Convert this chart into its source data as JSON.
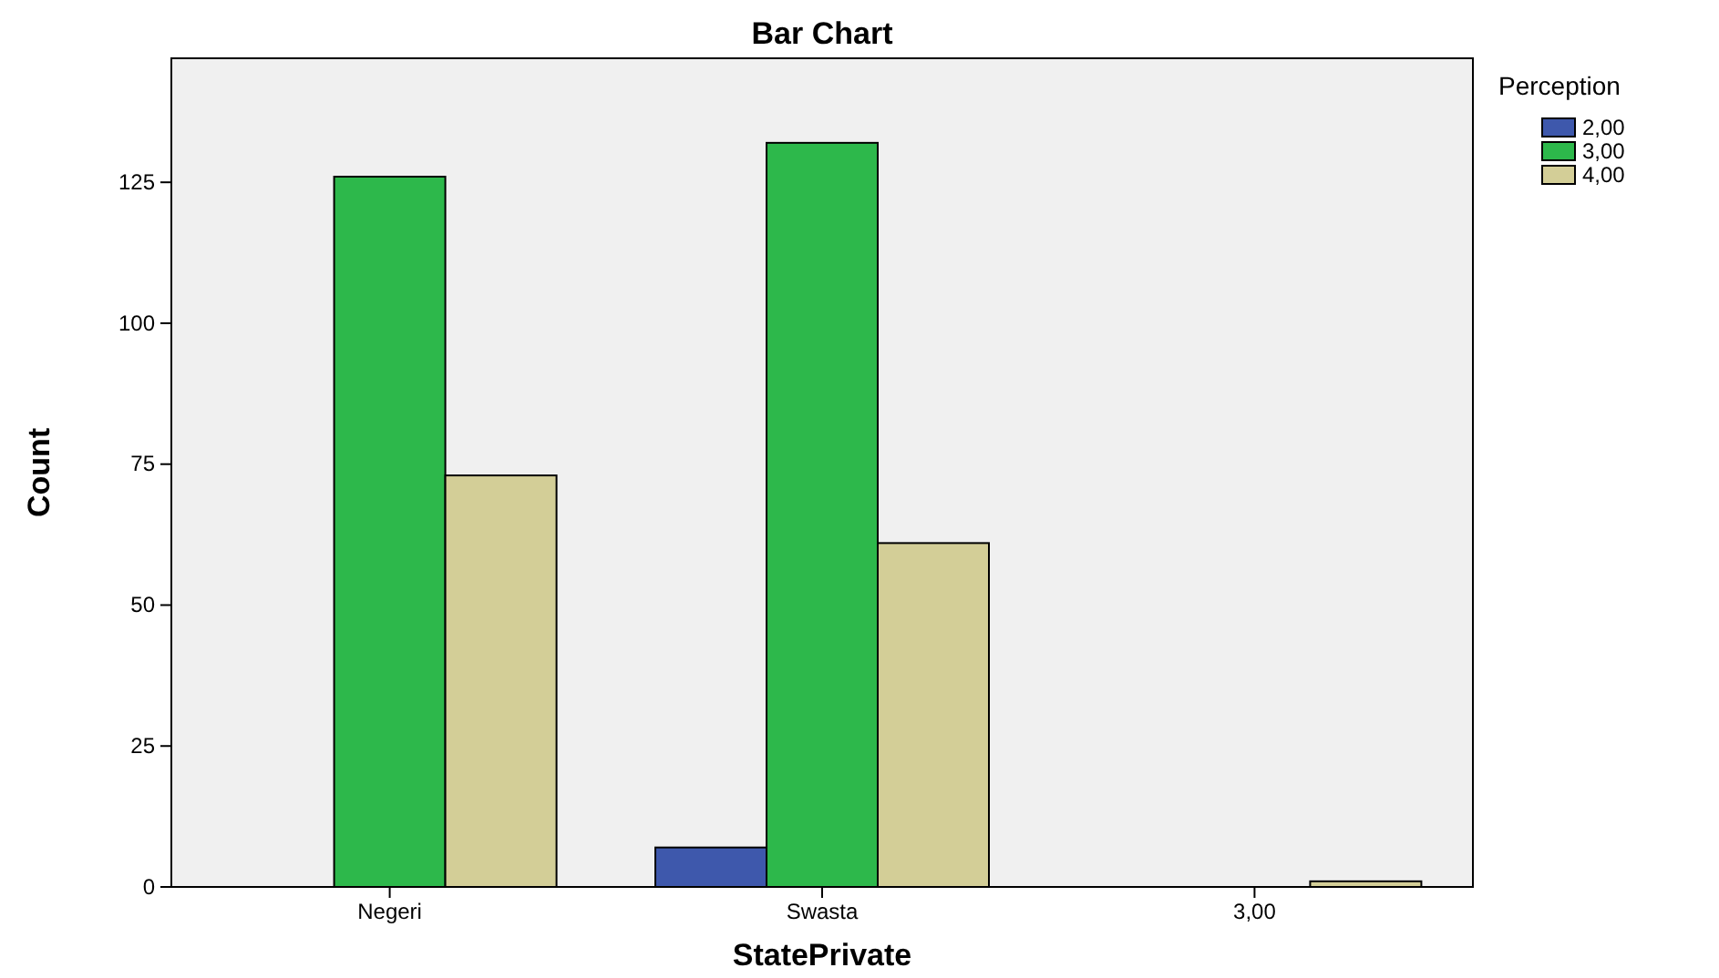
{
  "chart_data": {
    "type": "bar",
    "title": "Bar Chart",
    "xlabel": "StatePrivate",
    "ylabel": "Count",
    "legend_title": "Perception",
    "categories": [
      "Negeri",
      "Swasta",
      "3,00"
    ],
    "series": [
      {
        "name": "2,00",
        "color": "#3e58ac",
        "values": [
          null,
          7,
          null
        ]
      },
      {
        "name": "3,00",
        "color": "#2db84b",
        "values": [
          126,
          132,
          null
        ]
      },
      {
        "name": "4,00",
        "color": "#d3ce97",
        "values": [
          73,
          61,
          1
        ]
      }
    ],
    "ylim": [
      0,
      147
    ],
    "yticks": [
      0,
      25,
      50,
      75,
      100,
      125
    ],
    "legend": "top right",
    "grid": false
  }
}
